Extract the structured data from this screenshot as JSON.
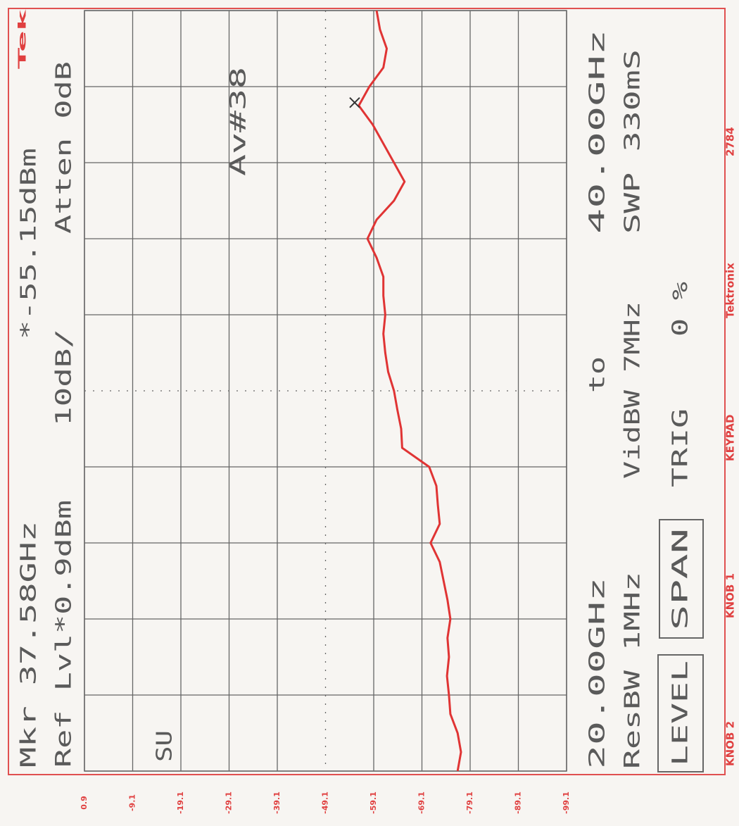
{
  "chart_data": {
    "type": "line",
    "brand": "Tek",
    "header": {
      "marker_label": "Mkr 37.58GHz",
      "marker_value_label": "*-55.15dBm",
      "ref_level": "Ref Lvl*0.9dBm",
      "scale": "10dB/",
      "atten": "Atten 0dB",
      "average": "Av#38",
      "mode": "SU"
    },
    "footer": {
      "start": "20.00GHz",
      "to": "to",
      "stop": "40.00GHz",
      "resbw": "ResBW 1MHz",
      "vidbw": "VidBW 7MHz",
      "sweep": "SWP 330mS",
      "level": "LEVEL",
      "span": "SPAN",
      "trig": "TRIG",
      "trig_value": "0 %"
    },
    "softkeys": [
      "KNOB 2",
      "KNOB 1",
      "KEYPAD",
      "Tektronix",
      "2784"
    ],
    "x": [
      20.0,
      20.5,
      21.0,
      21.5,
      22.0,
      22.5,
      23.0,
      23.5,
      24.0,
      24.5,
      25.0,
      25.5,
      26.0,
      26.5,
      27.0,
      27.5,
      28.0,
      28.5,
      29.0,
      29.5,
      30.0,
      30.5,
      31.0,
      31.5,
      32.0,
      32.5,
      33.0,
      33.5,
      34.0,
      34.5,
      35.0,
      35.5,
      36.0,
      36.5,
      37.0,
      37.5,
      38.0,
      38.5,
      39.0,
      39.5,
      40.0
    ],
    "series": [
      {
        "color": "#e03434",
        "values": [
          -76.5,
          -77.2,
          -76.5,
          -75.0,
          -74.7,
          -74.3,
          -74.7,
          -74.4,
          -75.0,
          -74.4,
          -73.6,
          -72.8,
          -70.9,
          -72.8,
          -72.4,
          -72.1,
          -70.6,
          -65.0,
          -64.8,
          -64.0,
          -63.3,
          -62.1,
          -61.5,
          -61.1,
          -61.5,
          -61.1,
          -61.1,
          -59.7,
          -57.8,
          -59.7,
          -63.3,
          -65.5,
          -63.3,
          -61.1,
          -58.9,
          -56.0,
          -58.2,
          -61.1,
          -61.8,
          -60.4,
          -59.7
        ]
      }
    ],
    "marker": {
      "frequency": 37.58,
      "value": -55.15
    },
    "xlim": [
      20,
      40
    ],
    "xticks": [
      20,
      22,
      24,
      26,
      28,
      30,
      32,
      34,
      36,
      38,
      40
    ],
    "ylim": [
      -99.1,
      0.9
    ],
    "yticks": [
      0.9,
      -9.1,
      -19.1,
      -29.1,
      -39.1,
      -49.1,
      -59.1,
      -69.1,
      -79.1,
      -89.1,
      -99.1
    ],
    "grid": true
  }
}
